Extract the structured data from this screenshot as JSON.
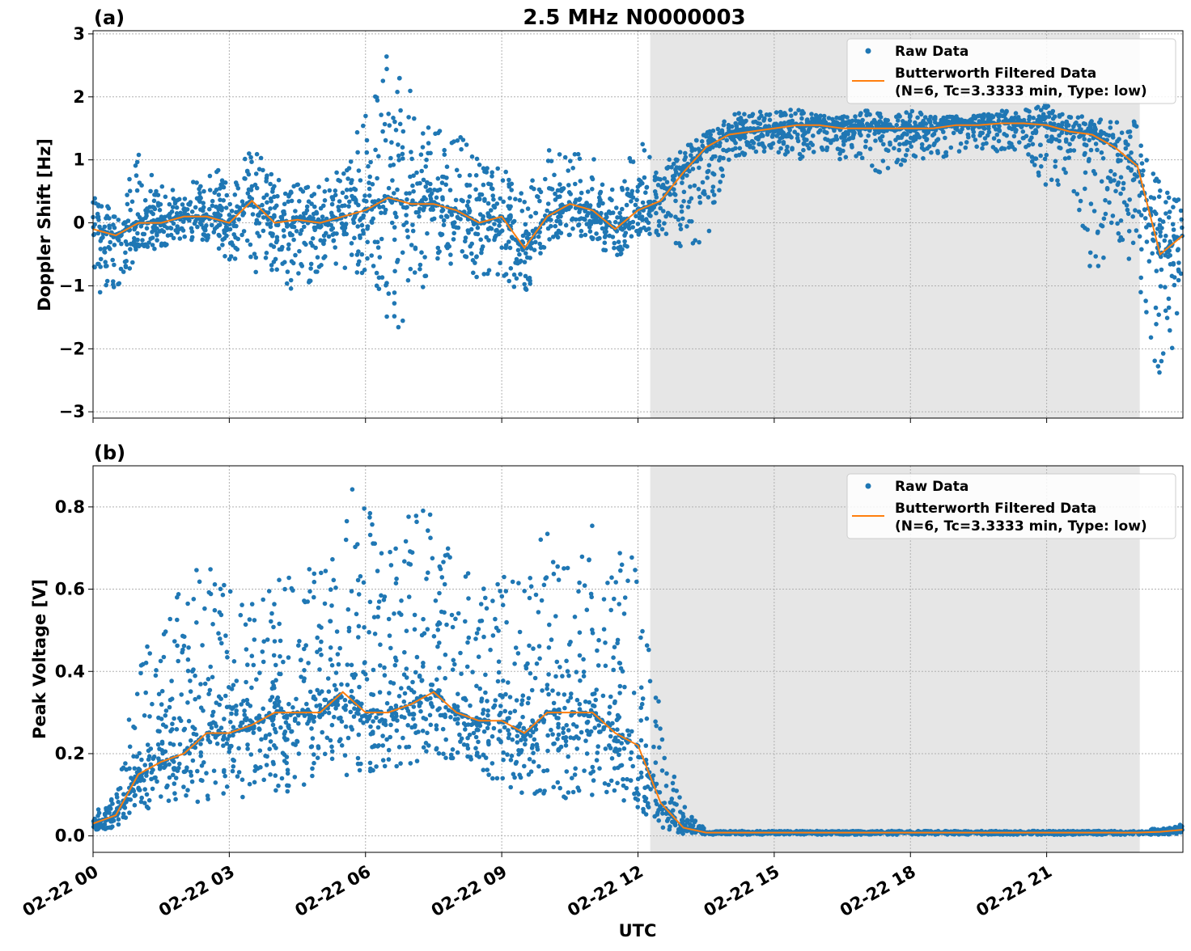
{
  "title": "2.5 MHz N0000003",
  "chart_data": [
    {
      "type": "scatter+line",
      "panel_label": "(a)",
      "title": "2.5 MHz N0000003",
      "xlabel": "",
      "ylabel": "Doppler Shift [Hz]",
      "ylim": [
        -3.1,
        3.05
      ],
      "yticks": [
        -3,
        -2,
        -1,
        0,
        1,
        2,
        3
      ],
      "ytick_labels": [
        "−3",
        "−2",
        "−1",
        "0",
        "1",
        "2",
        "3"
      ],
      "grid": true,
      "legend": "top-right",
      "shaded_interval_hours": [
        12.27,
        23.05
      ],
      "shade_color": "#e6e6e6",
      "series": [
        {
          "name": "Raw Data",
          "color": "#1f77b4",
          "kind": "scatter",
          "raw_min": [
            -1.1,
            -1.2,
            -0.5,
            -0.4,
            -0.3,
            -0.3,
            -0.6,
            -0.9,
            -0.8,
            -1.2,
            -0.9,
            -0.7,
            -1.0,
            -1.7,
            -1.7,
            -0.8,
            -0.6,
            -0.9,
            -0.8,
            -1.2,
            -0.4,
            -0.2,
            -0.3,
            -0.6,
            -0.2,
            -0.2,
            -0.5,
            -0.3,
            1.0,
            1.1,
            1.1,
            1.0,
            1.1,
            1.0,
            0.8,
            0.8,
            1.0,
            1.0,
            1.1,
            1.1,
            1.1,
            1.2,
            0.3,
            0.8,
            -0.9,
            -0.5,
            -0.9,
            -2.8,
            -1.5
          ],
          "raw_max": [
            0.4,
            0.3,
            1.1,
            0.6,
            0.5,
            0.9,
            0.8,
            1.3,
            0.8,
            0.7,
            0.6,
            0.9,
            1.9,
            2.7,
            2.2,
            1.6,
            1.5,
            1.0,
            0.9,
            0.5,
            1.2,
            1.1,
            1.1,
            0.5,
            1.5,
            0.9,
            1.2,
            1.5,
            1.7,
            1.8,
            1.8,
            1.8,
            1.7,
            1.7,
            1.8,
            1.7,
            1.8,
            1.7,
            1.7,
            1.7,
            1.8,
            1.8,
            1.9,
            1.7,
            1.7,
            1.7,
            1.6,
            0.6,
            0.4
          ]
        },
        {
          "name": "Butterworth Filtered Data\n(N=6, Tc=3.3333 min, Type: low)",
          "name_line1": "Butterworth Filtered Data",
          "name_line2": "(N=6, Tc=3.3333 min, Type: low)",
          "color": "#ff7f0e",
          "kind": "line",
          "x_hours_step": 0.5,
          "values": [
            -0.1,
            -0.2,
            0.0,
            0.0,
            0.1,
            0.1,
            0.0,
            0.35,
            0.0,
            0.05,
            0.0,
            0.1,
            0.2,
            0.4,
            0.3,
            0.3,
            0.2,
            0.0,
            0.1,
            -0.4,
            0.1,
            0.3,
            0.2,
            -0.1,
            0.2,
            0.35,
            0.8,
            1.2,
            1.4,
            1.45,
            1.5,
            1.55,
            1.55,
            1.5,
            1.5,
            1.5,
            1.5,
            1.5,
            1.55,
            1.55,
            1.58,
            1.58,
            1.55,
            1.45,
            1.4,
            1.2,
            0.9,
            -0.5,
            -0.2
          ]
        }
      ]
    },
    {
      "type": "scatter+line",
      "panel_label": "(b)",
      "xlabel": "UTC",
      "ylabel": "Peak Voltage [V]",
      "ylim": [
        -0.04,
        0.9
      ],
      "yticks": [
        0,
        0.2,
        0.4,
        0.6,
        0.8
      ],
      "ytick_labels": [
        "0.0",
        "0.2",
        "0.4",
        "0.6",
        "0.8"
      ],
      "grid": true,
      "legend": "top-right",
      "shaded_interval_hours": [
        12.27,
        23.05
      ],
      "shade_color": "#e6e6e6",
      "xticks_hours": [
        0,
        3,
        6,
        9,
        12,
        15,
        18,
        21
      ],
      "xtick_labels": [
        "02-22 00",
        "02-22 03",
        "02-22 06",
        "02-22 09",
        "02-22 12",
        "02-22 15",
        "02-22 18",
        "02-22 21"
      ],
      "series": [
        {
          "name": "Raw Data",
          "color": "#1f77b4",
          "kind": "scatter",
          "raw_min": [
            0.01,
            0.02,
            0.06,
            0.06,
            0.08,
            0.08,
            0.08,
            0.09,
            0.1,
            0.1,
            0.12,
            0.14,
            0.15,
            0.15,
            0.17,
            0.2,
            0.18,
            0.16,
            0.1,
            0.1,
            0.1,
            0.09,
            0.1,
            0.08,
            0.07,
            0.02,
            0.005,
            0.003,
            0.003,
            0.003,
            0.003,
            0.003,
            0.003,
            0.003,
            0.003,
            0.003,
            0.003,
            0.003,
            0.003,
            0.003,
            0.003,
            0.003,
            0.003,
            0.003,
            0.003,
            0.003,
            0.003,
            0.003,
            0.005
          ],
          "raw_max": [
            0.08,
            0.12,
            0.45,
            0.48,
            0.64,
            0.67,
            0.6,
            0.58,
            0.64,
            0.63,
            0.75,
            0.85,
            0.85,
            0.7,
            0.8,
            0.83,
            0.67,
            0.62,
            0.68,
            0.6,
            0.8,
            0.7,
            0.8,
            0.68,
            0.72,
            0.3,
            0.08,
            0.012,
            0.012,
            0.012,
            0.012,
            0.012,
            0.012,
            0.012,
            0.012,
            0.012,
            0.012,
            0.012,
            0.012,
            0.012,
            0.012,
            0.012,
            0.012,
            0.012,
            0.012,
            0.012,
            0.012,
            0.02,
            0.03
          ]
        },
        {
          "name": "Butterworth Filtered Data\n(N=6, Tc=3.3333 min, Type: low)",
          "name_line1": "Butterworth Filtered Data",
          "name_line2": "(N=6, Tc=3.3333 min, Type: low)",
          "color": "#ff7f0e",
          "kind": "line",
          "x_hours_step": 0.5,
          "values": [
            0.03,
            0.05,
            0.15,
            0.18,
            0.2,
            0.25,
            0.25,
            0.27,
            0.3,
            0.3,
            0.3,
            0.35,
            0.3,
            0.3,
            0.32,
            0.35,
            0.3,
            0.28,
            0.28,
            0.25,
            0.3,
            0.3,
            0.3,
            0.25,
            0.22,
            0.08,
            0.02,
            0.008,
            0.008,
            0.008,
            0.008,
            0.008,
            0.008,
            0.008,
            0.008,
            0.008,
            0.008,
            0.008,
            0.008,
            0.008,
            0.008,
            0.008,
            0.008,
            0.008,
            0.008,
            0.008,
            0.008,
            0.01,
            0.015
          ]
        }
      ]
    }
  ]
}
